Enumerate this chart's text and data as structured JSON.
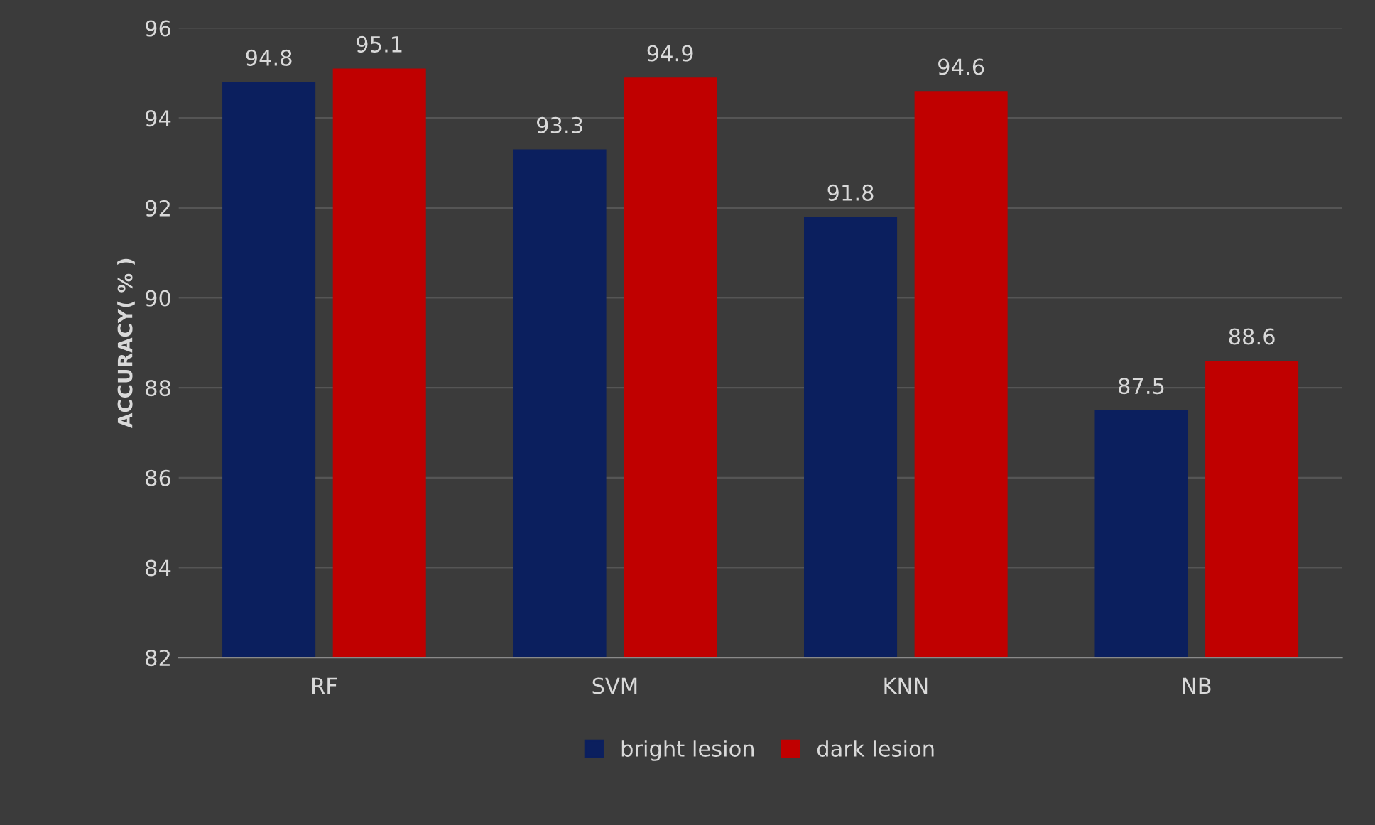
{
  "chart_data": {
    "type": "bar",
    "ylabel": "ACCURACY( % )",
    "categories": [
      "RF",
      "SVM",
      "KNN",
      "NB"
    ],
    "series": [
      {
        "name": "bright lesion",
        "color": "#0b1f5e",
        "values": [
          94.8,
          93.3,
          91.8,
          87.5
        ]
      },
      {
        "name": "dark lesion",
        "color": "#c00000",
        "values": [
          95.1,
          94.9,
          94.6,
          88.6
        ]
      }
    ],
    "ylim": [
      82,
      96
    ],
    "yticks": [
      82,
      84,
      86,
      88,
      90,
      92,
      94,
      96
    ],
    "grid": "y",
    "legend": "bottom",
    "data_labels": true
  }
}
